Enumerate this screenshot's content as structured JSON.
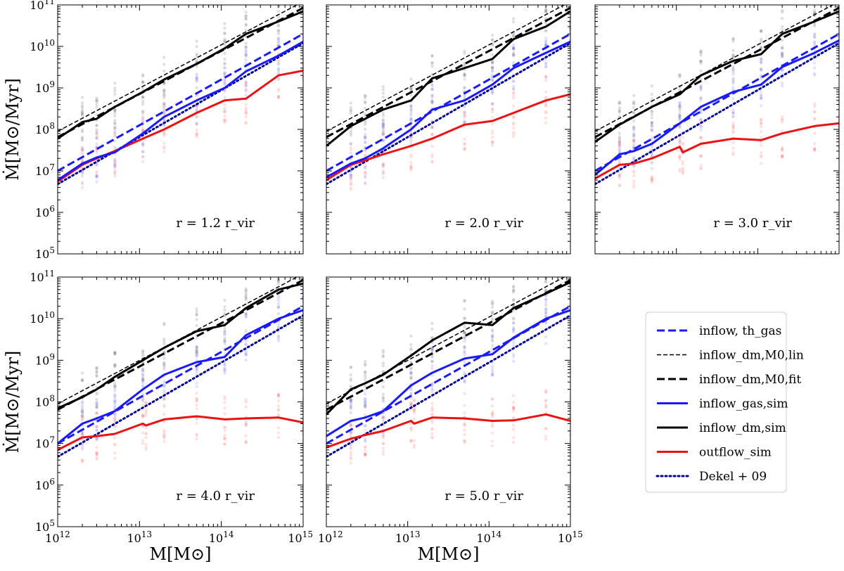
{
  "chart_data": {
    "type": "line",
    "xscale": "log",
    "yscale": "log",
    "xlim": [
      1000000000000.0,
      1000000000000000.0
    ],
    "ylim": [
      100000.0,
      100000000000.0
    ],
    "xlabel": "M[M⊙]",
    "ylabel": "Ṁ[M⊙/Myr]",
    "x_tick_labels": [
      {
        "label": "10^12",
        "value": 1000000000000.0
      },
      {
        "label": "10^13",
        "value": 10000000000000.0
      },
      {
        "label": "10^14",
        "value": 100000000000000.0
      },
      {
        "label": "10^15",
        "value": 1000000000000000.0
      }
    ],
    "y_tick_labels": [
      {
        "label": "10^5",
        "value": 100000.0
      },
      {
        "label": "10^6",
        "value": 1000000.0
      },
      {
        "label": "10^7",
        "value": 10000000.0
      },
      {
        "label": "10^8",
        "value": 100000000.0
      },
      {
        "label": "10^9",
        "value": 1000000000.0
      },
      {
        "label": "10^10",
        "value": 10000000000.0
      },
      {
        "label": "10^11",
        "value": 100000000000.0
      }
    ],
    "legend": {
      "placement": "bottom-right",
      "entries": [
        {
          "key": "inflow_th_gas",
          "label": "inflow, th_gas",
          "color": "#1a1aff",
          "style": "dashed"
        },
        {
          "key": "inflow_dm_M0lin",
          "label": "inflow_dm,M0,lin",
          "color": "#000000",
          "style": "thin-dashed"
        },
        {
          "key": "inflow_dm_M0fit",
          "label": "inflow_dm,M0,fit",
          "color": "#000000",
          "style": "dashed"
        },
        {
          "key": "inflow_gas_sim",
          "label": "inflow_gas,sim",
          "color": "#1a1aff",
          "style": "solid"
        },
        {
          "key": "inflow_dm_sim",
          "label": "inflow_dm,sim",
          "color": "#000000",
          "style": "solid"
        },
        {
          "key": "outflow_sim",
          "label": "outflow_sim",
          "color": "#ee1111",
          "style": "solid"
        },
        {
          "key": "dekel09",
          "label": "Dekel + 09",
          "color": "#00009a",
          "style": "dotted"
        }
      ]
    },
    "panels": [
      {
        "label": "r = 1.2 r_vir",
        "lines": [
          {
            "key": "inflow_dm_M0lin",
            "x": [
              1000000000000.0,
              1000000000000000.0
            ],
            "y": [
              90000000.0,
              120000000000.0
            ]
          },
          {
            "key": "inflow_dm_M0fit",
            "x": [
              1000000000000.0,
              1000000000000000.0
            ],
            "y": [
              65000000.0,
              85000000000.0
            ]
          },
          {
            "key": "inflow_th_gas",
            "x": [
              1000000000000.0,
              1000000000000000.0
            ],
            "y": [
              10000000.0,
              20000000000.0
            ]
          },
          {
            "key": "dekel09",
            "x": [
              1000000000000.0,
              1000000000000000.0
            ],
            "y": [
              4800000.0,
              12000000000.0
            ]
          },
          {
            "key": "inflow_dm_sim",
            "x": [
              1000000000000.0,
              2000000000000.0,
              3000000000000.0,
              5000000000000.0,
              11000000000000.0,
              20000000000000.0,
              50000000000000.0,
              110000000000000.0,
              200000000000000.0,
              500000000000000.0,
              1000000000000000.0
            ],
            "y": [
              60000000.0,
              150000000.0,
              180000000.0,
              350000000.0,
              800000000.0,
              1600000000.0,
              3800000000.0,
              9000000000.0,
              20000000000.0,
              40000000000.0,
              70000000000.0
            ]
          },
          {
            "key": "inflow_gas_sim",
            "x": [
              1000000000000.0,
              2000000000000.0,
              3000000000000.0,
              5000000000000.0,
              11000000000000.0,
              20000000000000.0,
              50000000000000.0,
              110000000000000.0,
              200000000000000.0,
              500000000000000.0,
              1000000000000000.0
            ],
            "y": [
              6000000.0,
              15000000.0,
              21000000.0,
              28000000.0,
              80000000.0,
              200000000.0,
              500000000.0,
              1000000000.0,
              2500000000.0,
              6000000000.0,
              13000000000.0
            ]
          },
          {
            "key": "outflow_sim",
            "x": [
              1000000000000.0,
              2000000000000.0,
              3000000000000.0,
              5000000000000.0,
              11000000000000.0,
              20000000000000.0,
              50000000000000.0,
              110000000000000.0,
              200000000000000.0,
              500000000000000.0,
              1000000000000000.0
            ],
            "y": [
              5500000.0,
              14000000.0,
              20000000.0,
              30000000.0,
              60000000.0,
              100000000.0,
              250000000.0,
              500000000.0,
              550000000.0,
              2000000000.0,
              2600000000.0
            ]
          }
        ]
      },
      {
        "label": "r = 2.0 r_vir",
        "lines": [
          {
            "key": "inflow_dm_M0lin",
            "x": [
              1000000000000.0,
              1000000000000000.0
            ],
            "y": [
              90000000.0,
              120000000000.0
            ]
          },
          {
            "key": "inflow_dm_M0fit",
            "x": [
              1000000000000.0,
              1000000000000000.0
            ],
            "y": [
              65000000.0,
              85000000000.0
            ]
          },
          {
            "key": "inflow_th_gas",
            "x": [
              1000000000000.0,
              1000000000000000.0
            ],
            "y": [
              10000000.0,
              20000000000.0
            ]
          },
          {
            "key": "dekel09",
            "x": [
              1000000000000.0,
              1000000000000000.0
            ],
            "y": [
              4800000.0,
              12000000000.0
            ]
          },
          {
            "key": "inflow_dm_sim",
            "x": [
              1000000000000.0,
              2000000000000.0,
              3000000000000.0,
              5000000000000.0,
              11000000000000.0,
              20000000000000.0,
              50000000000000.0,
              110000000000000.0,
              200000000000000.0,
              500000000000000.0,
              1000000000000000.0
            ],
            "y": [
              40000000.0,
              120000000.0,
              180000000.0,
              300000000.0,
              500000000.0,
              1700000000.0,
              3000000000.0,
              5000000000.0,
              15000000000.0,
              30000000000.0,
              70000000000.0
            ]
          },
          {
            "key": "inflow_gas_sim",
            "x": [
              1000000000000.0,
              2000000000000.0,
              3000000000000.0,
              5000000000000.0,
              11000000000000.0,
              20000000000000.0,
              50000000000000.0,
              110000000000000.0,
              200000000000000.0,
              500000000000000.0,
              1000000000000000.0
            ],
            "y": [
              7000000.0,
              15000000.0,
              20000000.0,
              35000000.0,
              100000000.0,
              300000000.0,
              500000000.0,
              1200000000.0,
              3000000000.0,
              7000000000.0,
              13000000000.0
            ]
          },
          {
            "key": "outflow_sim",
            "x": [
              1000000000000.0,
              2000000000000.0,
              3000000000000.0,
              5000000000000.0,
              11000000000000.0,
              20000000000000.0,
              50000000000000.0,
              110000000000000.0,
              200000000000000.0,
              500000000000000.0,
              1000000000000000.0
            ],
            "y": [
              6000000.0,
              14000000.0,
              18000000.0,
              25000000.0,
              40000000.0,
              60000000.0,
              130000000.0,
              160000000.0,
              250000000.0,
              500000000.0,
              700000000.0
            ]
          }
        ]
      },
      {
        "label": "r = 3.0 r_vir",
        "lines": [
          {
            "key": "inflow_dm_M0lin",
            "x": [
              1000000000000.0,
              1000000000000000.0
            ],
            "y": [
              90000000.0,
              120000000000.0
            ]
          },
          {
            "key": "inflow_dm_M0fit",
            "x": [
              1000000000000.0,
              1000000000000000.0
            ],
            "y": [
              65000000.0,
              85000000000.0
            ]
          },
          {
            "key": "inflow_th_gas",
            "x": [
              1000000000000.0,
              1000000000000000.0
            ],
            "y": [
              10000000.0,
              20000000000.0
            ]
          },
          {
            "key": "dekel09",
            "x": [
              1000000000000.0,
              1000000000000000.0
            ],
            "y": [
              4800000.0,
              12000000000.0
            ]
          },
          {
            "key": "inflow_dm_sim",
            "x": [
              1000000000000.0,
              2000000000000.0,
              3000000000000.0,
              5000000000000.0,
              11000000000000.0,
              20000000000000.0,
              50000000000000.0,
              110000000000000.0,
              200000000000000.0,
              500000000000000.0,
              1000000000000000.0
            ],
            "y": [
              50000000.0,
              130000000.0,
              200000000.0,
              350000000.0,
              700000000.0,
              2000000000.0,
              4500000000.0,
              6500000000.0,
              20000000000.0,
              40000000000.0,
              70000000000.0
            ]
          },
          {
            "key": "inflow_gas_sim",
            "x": [
              1000000000000.0,
              2000000000000.0,
              3000000000000.0,
              5000000000000.0,
              11000000000000.0,
              20000000000000.0,
              50000000000000.0,
              110000000000000.0,
              200000000000000.0,
              500000000000000.0,
              1000000000000000.0
            ],
            "y": [
              8000000.0,
              25000000.0,
              30000000.0,
              45000000.0,
              140000000.0,
              350000000.0,
              800000000.0,
              1200000000.0,
              3200000000.0,
              7000000000.0,
              14000000000.0
            ]
          },
          {
            "key": "outflow_sim",
            "x": [
              1000000000000.0,
              2000000000000.0,
              3000000000000.0,
              5000000000000.0,
              11000000000000.0,
              12000000000000.0,
              20000000000000.0,
              50000000000000.0,
              110000000000000.0,
              200000000000000.0,
              500000000000000.0,
              1000000000000000.0
            ],
            "y": [
              6500000.0,
              14000000.0,
              15000000.0,
              20000000.0,
              38000000.0,
              28000000.0,
              45000000.0,
              60000000.0,
              55000000.0,
              80000000.0,
              120000000.0,
              140000000.0
            ]
          }
        ]
      },
      {
        "label": "r = 4.0 r_vir",
        "lines": [
          {
            "key": "inflow_dm_M0lin",
            "x": [
              1000000000000.0,
              1000000000000000.0
            ],
            "y": [
              90000000.0,
              120000000000.0
            ]
          },
          {
            "key": "inflow_dm_M0fit",
            "x": [
              1000000000000.0,
              1000000000000000.0
            ],
            "y": [
              65000000.0,
              85000000000.0
            ]
          },
          {
            "key": "inflow_th_gas",
            "x": [
              1000000000000.0,
              1000000000000000.0
            ],
            "y": [
              10000000.0,
              20000000000.0
            ]
          },
          {
            "key": "dekel09",
            "x": [
              1000000000000.0,
              1000000000000000.0
            ],
            "y": [
              4800000.0,
              12000000000.0
            ]
          },
          {
            "key": "inflow_dm_sim",
            "x": [
              1000000000000.0,
              2000000000000.0,
              3000000000000.0,
              5000000000000.0,
              11000000000000.0,
              20000000000000.0,
              50000000000000.0,
              110000000000000.0,
              200000000000000.0,
              500000000000000.0,
              1000000000000000.0
            ],
            "y": [
              70000000.0,
              130000000.0,
              200000000.0,
              400000000.0,
              1000000000.0,
              2000000000.0,
              5000000000.0,
              7000000000.0,
              18000000000.0,
              50000000000.0,
              70000000000.0
            ]
          },
          {
            "key": "inflow_gas_sim",
            "x": [
              1000000000000.0,
              2000000000000.0,
              3000000000000.0,
              5000000000000.0,
              11000000000000.0,
              20000000000000.0,
              50000000000000.0,
              110000000000000.0,
              200000000000000.0,
              500000000000000.0,
              1000000000000000.0
            ],
            "y": [
              10000000.0,
              30000000.0,
              40000000.0,
              60000000.0,
              200000000.0,
              450000000.0,
              900000000.0,
              1200000000.0,
              4000000000.0,
              10000000000.0,
              16000000000.0
            ]
          },
          {
            "key": "outflow_sim",
            "x": [
              1000000000000.0,
              2000000000000.0,
              3000000000000.0,
              5000000000000.0,
              11000000000000.0,
              12000000000000.0,
              20000000000000.0,
              50000000000000.0,
              110000000000000.0,
              200000000000000.0,
              500000000000000.0,
              1000000000000000.0
            ],
            "y": [
              7000000.0,
              14000000.0,
              15000000.0,
              17000000.0,
              30000000.0,
              27000000.0,
              38000000.0,
              45000000.0,
              38000000.0,
              40000000.0,
              42000000.0,
              32000000.0
            ]
          }
        ]
      },
      {
        "label": "r = 5.0 r_vir",
        "lines": [
          {
            "key": "inflow_dm_M0lin",
            "x": [
              1000000000000.0,
              1000000000000000.0
            ],
            "y": [
              90000000.0,
              120000000000.0
            ]
          },
          {
            "key": "inflow_dm_M0fit",
            "x": [
              1000000000000.0,
              1000000000000000.0
            ],
            "y": [
              65000000.0,
              85000000000.0
            ]
          },
          {
            "key": "inflow_th_gas",
            "x": [
              1000000000000.0,
              1000000000000000.0
            ],
            "y": [
              10000000.0,
              20000000000.0
            ]
          },
          {
            "key": "dekel09",
            "x": [
              1000000000000.0,
              1000000000000000.0
            ],
            "y": [
              4800000.0,
              12000000000.0
            ]
          },
          {
            "key": "inflow_dm_sim",
            "x": [
              1000000000000.0,
              2000000000000.0,
              3000000000000.0,
              5000000000000.0,
              11000000000000.0,
              20000000000000.0,
              50000000000000.0,
              110000000000000.0,
              200000000000000.0,
              500000000000000.0,
              1000000000000000.0
            ],
            "y": [
              50000000.0,
              200000000.0,
              280000000.0,
              450000000.0,
              1300000000.0,
              3000000000.0,
              8000000000.0,
              7000000000.0,
              18000000000.0,
              40000000000.0,
              75000000000.0
            ]
          },
          {
            "key": "inflow_gas_sim",
            "x": [
              1000000000000.0,
              2000000000000.0,
              3000000000000.0,
              5000000000000.0,
              11000000000000.0,
              20000000000000.0,
              50000000000000.0,
              110000000000000.0,
              200000000000000.0,
              500000000000000.0,
              1000000000000000.0
            ],
            "y": [
              15000000.0,
              35000000.0,
              42000000.0,
              60000000.0,
              250000000.0,
              500000000.0,
              1100000000.0,
              1400000000.0,
              3500000000.0,
              10000000000.0,
              16000000000.0
            ]
          },
          {
            "key": "outflow_sim",
            "x": [
              1000000000000.0,
              2000000000000.0,
              3000000000000.0,
              5000000000000.0,
              11000000000000.0,
              12000000000000.0,
              20000000000000.0,
              50000000000000.0,
              110000000000000.0,
              200000000000000.0,
              500000000000000.0,
              1000000000000000.0
            ],
            "y": [
              8000000.0,
              13000000.0,
              16000000.0,
              20000000.0,
              35000000.0,
              30000000.0,
              42000000.0,
              40000000.0,
              35000000.0,
              36000000.0,
              50000000.0,
              35000000.0
            ]
          }
        ]
      }
    ]
  }
}
